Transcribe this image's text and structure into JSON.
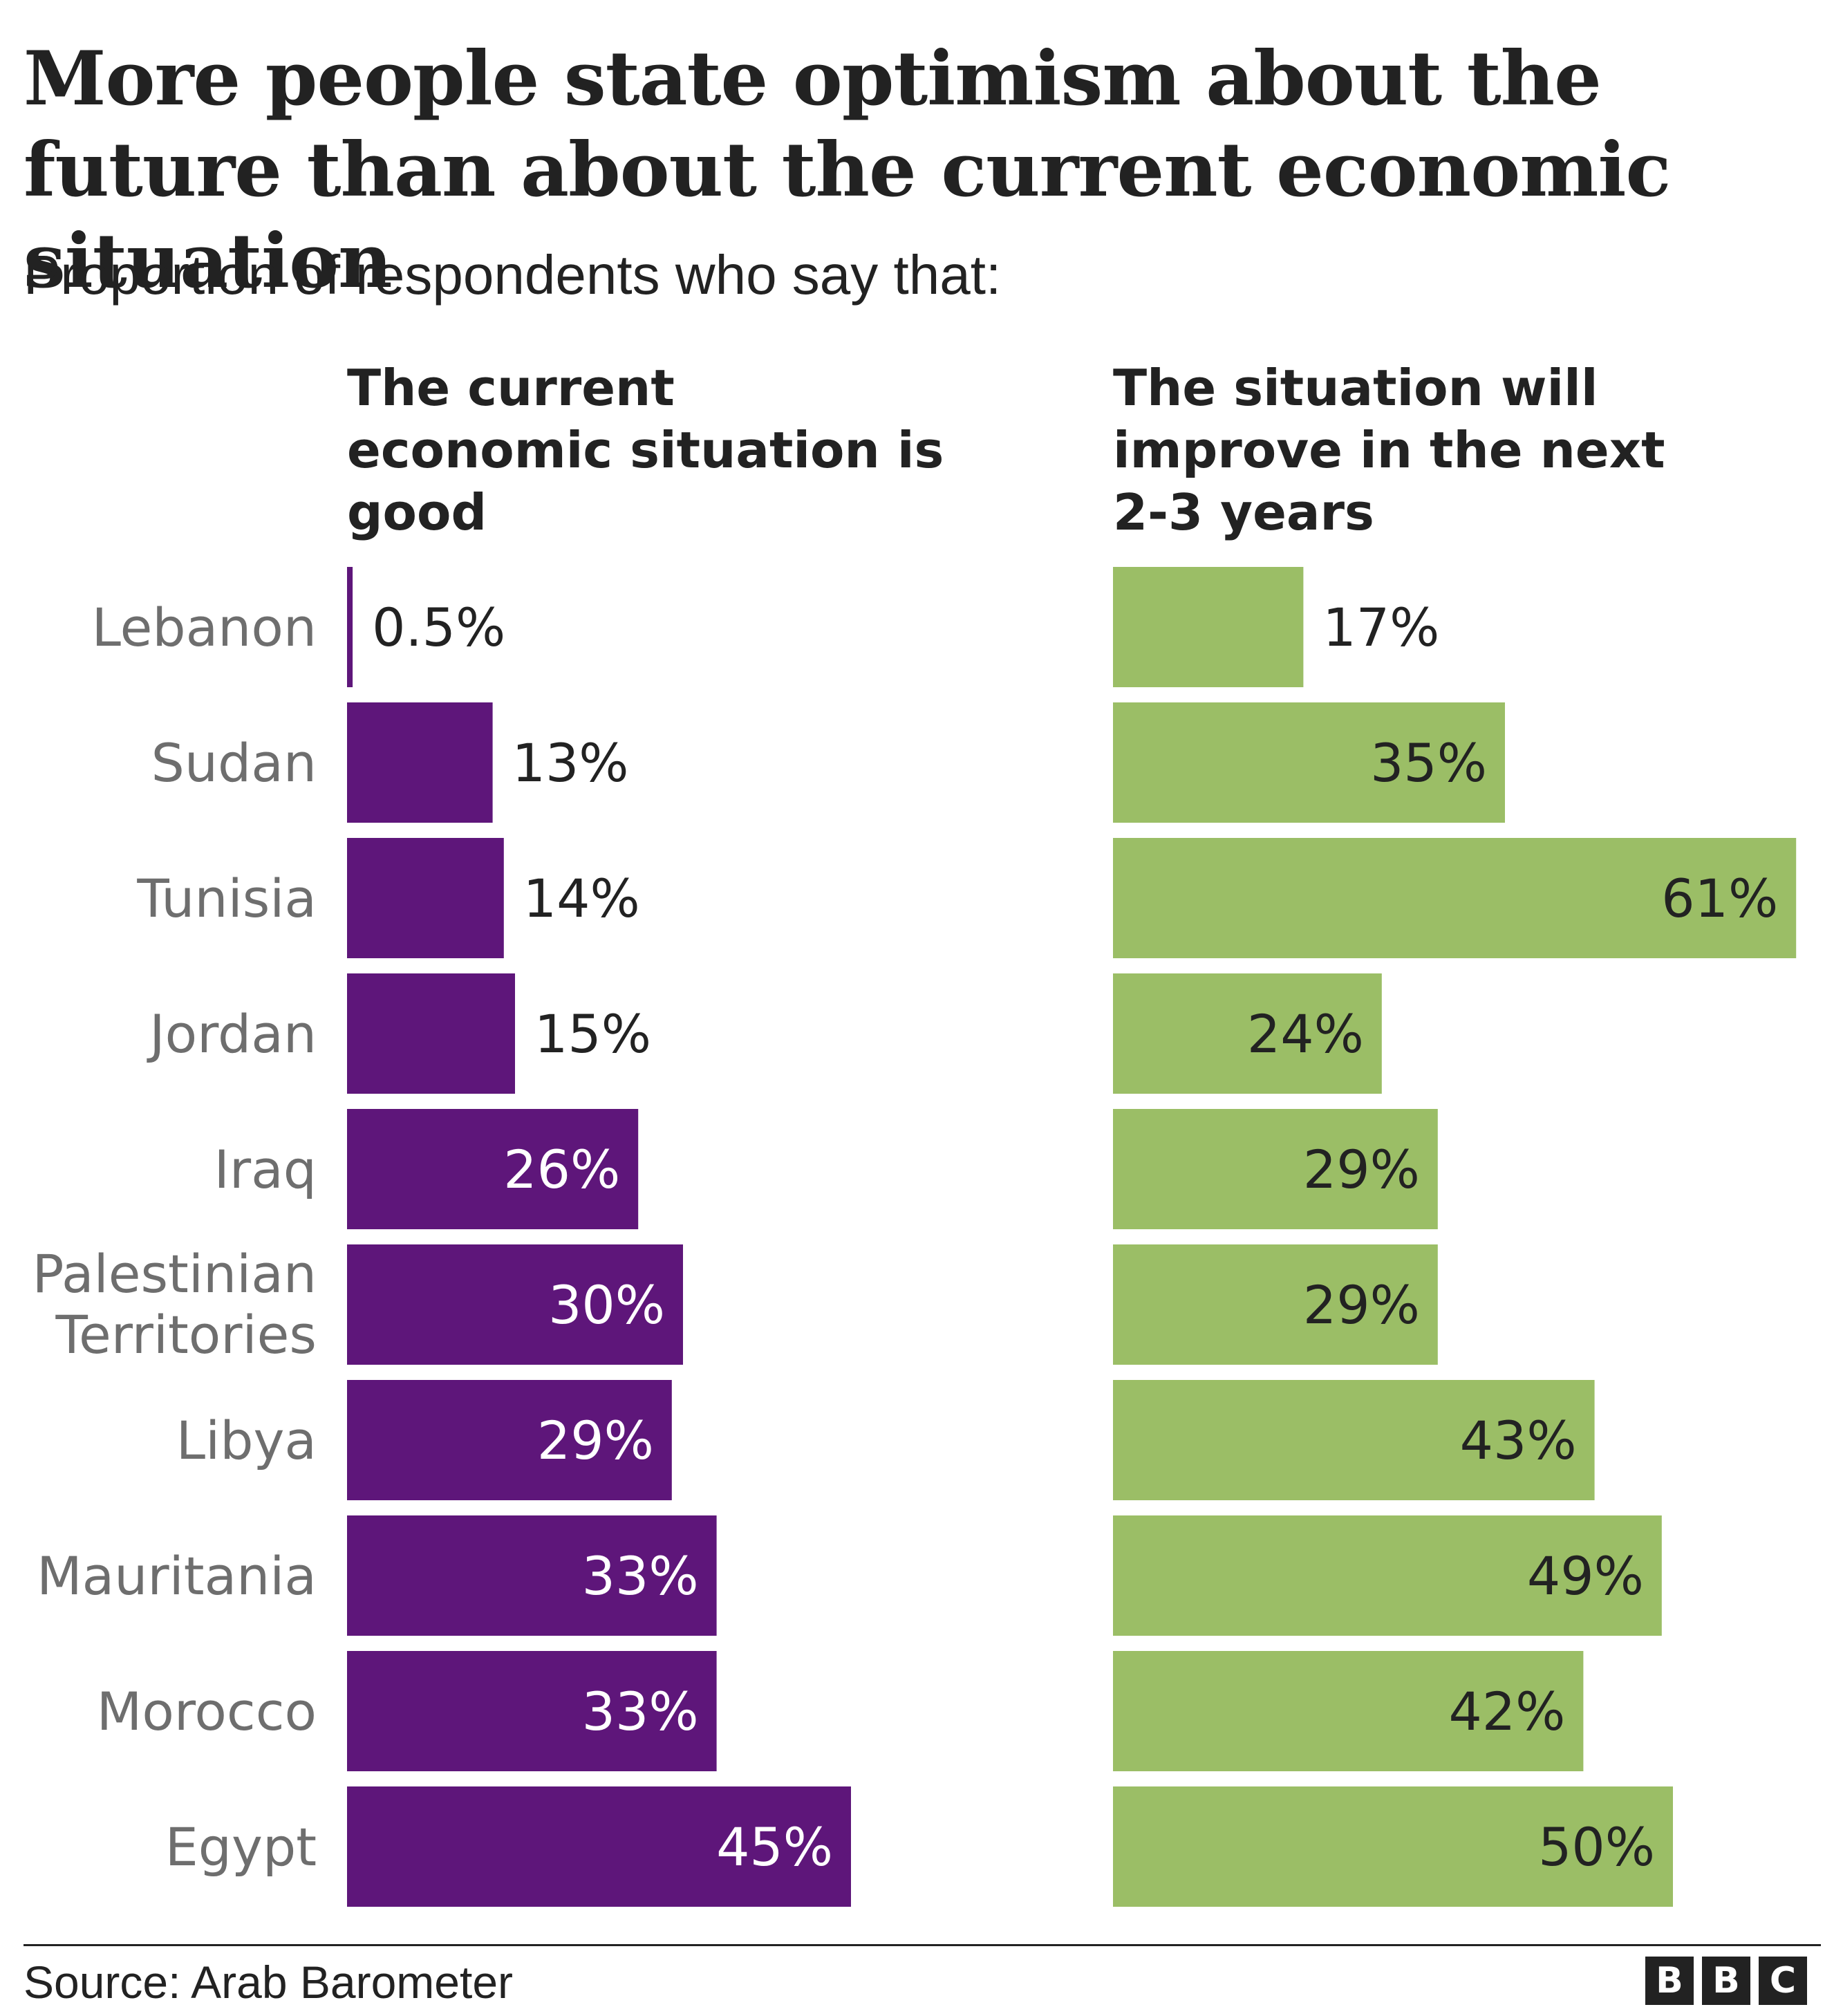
{
  "title": "More people state optimism about the future than about the current economic situation",
  "subtitle": "Proportion of respondents who say that:",
  "source": "Source: Arab Barometer",
  "logo": [
    "B",
    "B",
    "C"
  ],
  "colors": {
    "current": "#5e167a",
    "future": "#9bbe66",
    "label_dark": "#222222",
    "label_light": "#ffffff",
    "category": "#6e6e6e"
  },
  "chart_data": {
    "type": "bar",
    "orientation": "horizontal",
    "categories": [
      "Lebanon",
      "Sudan",
      "Tunisia",
      "Jordan",
      "Iraq",
      "Palestinian Territories",
      "Libya",
      "Mauritania",
      "Morocco",
      "Egypt"
    ],
    "series": [
      {
        "name": "The current economic situation is good",
        "values": [
          0.5,
          13,
          14,
          15,
          26,
          30,
          29,
          33,
          33,
          45
        ],
        "labels": [
          "0.5%",
          "13%",
          "14%",
          "15%",
          "26%",
          "30%",
          "29%",
          "33%",
          "33%",
          "45%"
        ]
      },
      {
        "name": "The situation will improve in the next 2-3 years",
        "values": [
          17,
          35,
          61,
          24,
          29,
          29,
          43,
          49,
          42,
          50
        ],
        "labels": [
          "17%",
          "35%",
          "61%",
          "24%",
          "29%",
          "29%",
          "43%",
          "49%",
          "42%",
          "50%"
        ]
      }
    ],
    "unit": "%",
    "xlim": [
      0,
      61
    ],
    "grid": false,
    "legend": "none"
  }
}
